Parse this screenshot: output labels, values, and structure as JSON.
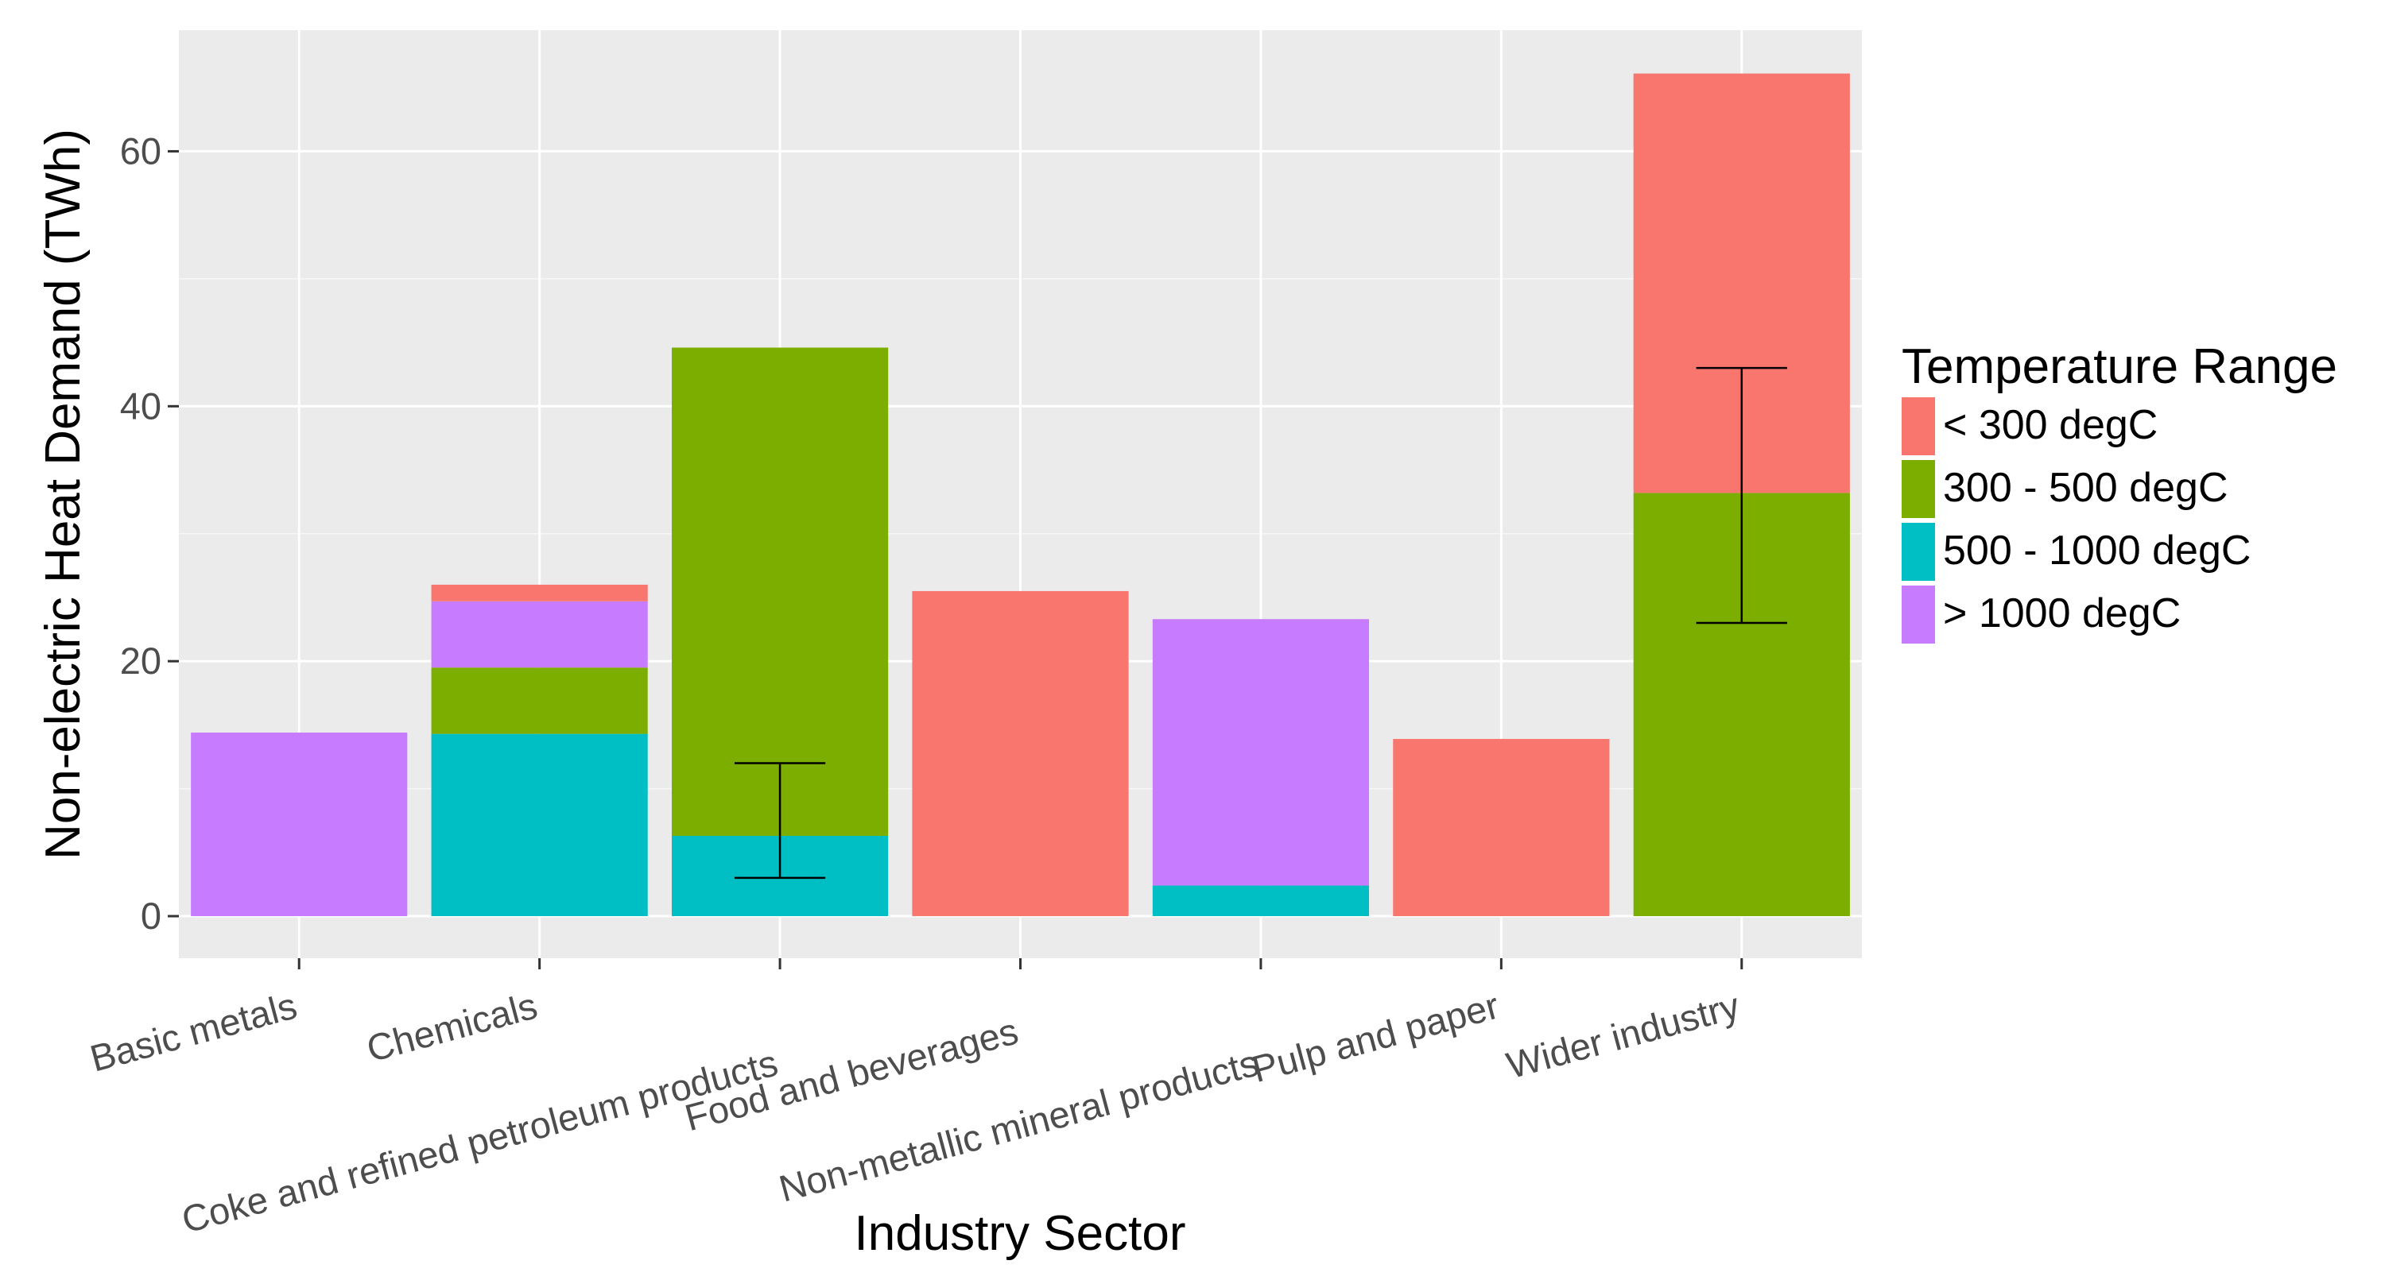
{
  "chart_data": {
    "type": "bar",
    "stacked": true,
    "categories": [
      "Basic metals",
      "Chemicals",
      "Coke and refined petroleum products",
      "Food and beverages",
      "Non-metallic mineral products",
      "Pulp and paper",
      "Wider industry"
    ],
    "series": [
      {
        "name": "500 - 1000 degC",
        "color": "#00BFC4",
        "values": [
          0,
          14.3,
          6.3,
          0,
          2.4,
          0,
          0
        ]
      },
      {
        "name": "300 - 500 degC",
        "color": "#7CAE00",
        "values": [
          0,
          5.2,
          38.3,
          0,
          0,
          0,
          33.2
        ]
      },
      {
        "name": "> 1000 degC",
        "color": "#C77CFF",
        "values": [
          14.4,
          5.2,
          0,
          0,
          20.9,
          0,
          0
        ]
      },
      {
        "name": "< 300 degC",
        "color": "#F8766D",
        "values": [
          0,
          1.3,
          0,
          25.5,
          0,
          13.9,
          32.9
        ]
      }
    ],
    "error_bars": [
      {
        "category": "Coke and refined petroleum products",
        "low": 3.0,
        "high": 12.0
      },
      {
        "category": "Wider industry",
        "low": 23.0,
        "high": 43.0
      }
    ],
    "title": "",
    "xlabel": "Industry Sector",
    "ylabel": "Non-electric Heat Demand (TWh)",
    "ylim": [
      -3.3,
      69.5
    ],
    "yticks": [
      0,
      20,
      40,
      60
    ],
    "ytick_labels": [
      "0",
      "20",
      "40",
      "60"
    ],
    "grid": true,
    "legend": {
      "title": "Temperature Range",
      "position": "right",
      "items": [
        {
          "label": "< 300 degC",
          "color": "#F8766D"
        },
        {
          "label": "300 - 500 degC",
          "color": "#7CAE00"
        },
        {
          "label": "500 - 1000 degC",
          "color": "#00BFC4"
        },
        {
          "label": "> 1000 degC",
          "color": "#C77CFF"
        }
      ]
    }
  }
}
